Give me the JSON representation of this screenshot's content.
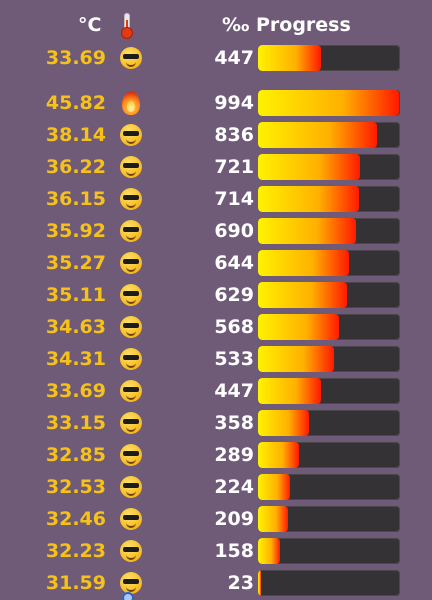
{
  "header": {
    "temp_label": "°C",
    "progress_label": "‰ Progress",
    "thermometer_icon": "thermometer-icon"
  },
  "colors": {
    "background": "#6f5b78",
    "temperature_text": "#f6c21a",
    "value_text": "#ffffff",
    "track": "#353235",
    "gradient_start": "#fff200",
    "gradient_mid": "#ffb000",
    "gradient_end": "#ff1a00"
  },
  "rows": [
    {
      "temp": "33.69",
      "icon": "sunglasses-face-icon",
      "value": "447",
      "permille": 447
    },
    {
      "temp": "45.82",
      "icon": "fire-icon",
      "value": "994",
      "permille": 994
    },
    {
      "temp": "38.14",
      "icon": "sunglasses-face-icon",
      "value": "836",
      "permille": 836
    },
    {
      "temp": "36.22",
      "icon": "sunglasses-face-icon",
      "value": "721",
      "permille": 721
    },
    {
      "temp": "36.15",
      "icon": "sunglasses-face-icon",
      "value": "714",
      "permille": 714
    },
    {
      "temp": "35.92",
      "icon": "sunglasses-face-icon",
      "value": "690",
      "permille": 690
    },
    {
      "temp": "35.27",
      "icon": "sunglasses-face-icon",
      "value": "644",
      "permille": 644
    },
    {
      "temp": "35.11",
      "icon": "sunglasses-face-icon",
      "value": "629",
      "permille": 629
    },
    {
      "temp": "34.63",
      "icon": "sunglasses-face-icon",
      "value": "568",
      "permille": 568
    },
    {
      "temp": "34.31",
      "icon": "sunglasses-face-icon",
      "value": "533",
      "permille": 533
    },
    {
      "temp": "33.69",
      "icon": "sunglasses-face-icon",
      "value": "447",
      "permille": 447
    },
    {
      "temp": "33.15",
      "icon": "sunglasses-face-icon",
      "value": "358",
      "permille": 358
    },
    {
      "temp": "32.85",
      "icon": "sunglasses-face-icon",
      "value": "289",
      "permille": 289
    },
    {
      "temp": "32.53",
      "icon": "sunglasses-face-icon",
      "value": "224",
      "permille": 224
    },
    {
      "temp": "32.46",
      "icon": "sunglasses-face-icon",
      "value": "209",
      "permille": 209
    },
    {
      "temp": "32.23",
      "icon": "sunglasses-face-icon",
      "value": "158",
      "permille": 158
    },
    {
      "temp": "31.59",
      "icon": "sunglasses-face-icon",
      "value": "23",
      "permille": 23
    }
  ]
}
